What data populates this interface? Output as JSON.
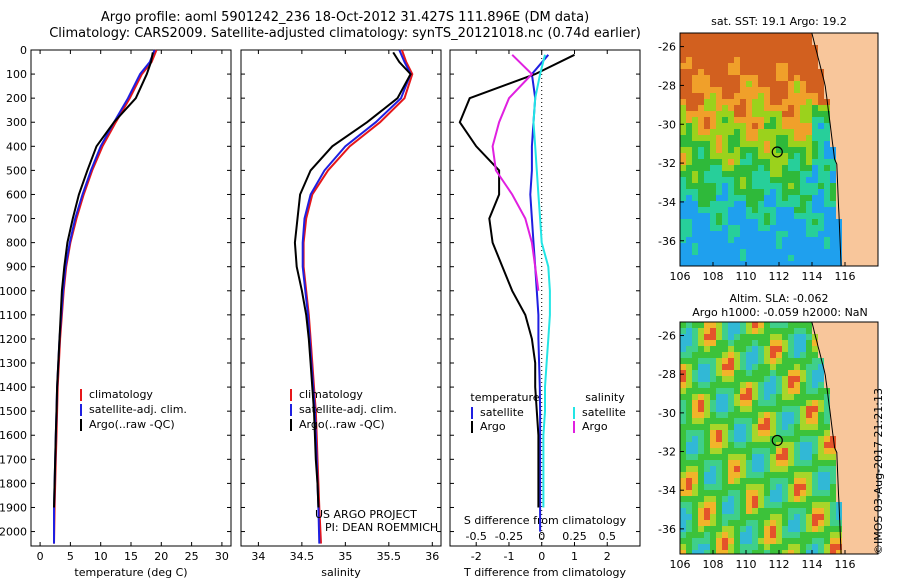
{
  "header": {
    "line1": "Argo profile: aoml 5901242_236 18-Oct-2012 31.427S 111.896E (DM data)",
    "line2": "Climatology: CARS2009. Satellite-adjusted climatology: synTS_20121018.nc (0.74d earlier)"
  },
  "colors": {
    "climatology": "#e6171a",
    "satellite": "#1f1fe0",
    "argo": "#000000",
    "satellite_salinity": "#22e5e5",
    "argo_salinity": "#e020e0",
    "land": "#f8c69b"
  },
  "chart_data": [
    {
      "type": "line",
      "panel": "temperature",
      "xlabel": "temperature (deg C)",
      "ylabel": "",
      "xlim": [
        -1.5,
        31.5
      ],
      "ylim": [
        2060,
        0
      ],
      "xticks": [
        0,
        5,
        10,
        15,
        20,
        25,
        30
      ],
      "yticks": [
        0,
        100,
        200,
        300,
        400,
        500,
        600,
        700,
        800,
        900,
        1000,
        1100,
        1200,
        1300,
        1400,
        1500,
        1600,
        1700,
        1800,
        1900,
        2000
      ],
      "legend": [
        "climatology",
        "satellite-adj. clim.",
        "Argo(..raw -QC)"
      ],
      "series": [
        {
          "name": "climatology",
          "color": "#e6171a",
          "x": [
            19.2,
            18.4,
            16.8,
            14.8,
            12.5,
            10.3,
            8.6,
            7.2,
            6.0,
            5.0,
            4.3,
            3.9,
            3.6,
            3.3,
            3.1,
            2.9,
            2.8,
            2.7,
            2.6,
            2.5,
            2.4,
            2.3
          ],
          "y": [
            0,
            50,
            100,
            200,
            300,
            400,
            500,
            600,
            700,
            800,
            900,
            1000,
            1100,
            1200,
            1300,
            1400,
            1500,
            1600,
            1700,
            1800,
            1900,
            2050
          ]
        },
        {
          "name": "satellite-adj. clim.",
          "color": "#1f1fe0",
          "x": [
            18.9,
            18.1,
            16.5,
            14.5,
            12.2,
            10.0,
            8.4,
            7.0,
            5.8,
            4.9,
            4.2,
            3.8,
            3.5,
            3.2,
            3.0,
            2.8,
            2.7,
            2.6,
            2.5,
            2.4,
            2.3,
            2.3
          ],
          "y": [
            0,
            50,
            100,
            200,
            300,
            400,
            500,
            600,
            700,
            800,
            900,
            1000,
            1100,
            1200,
            1300,
            1400,
            1500,
            1600,
            1700,
            1800,
            1900,
            2050
          ]
        },
        {
          "name": "Argo(..raw -QC)",
          "color": "#000000",
          "x": [
            18.6,
            18.3,
            17.6,
            15.8,
            12.2,
            9.3,
            7.8,
            6.4,
            5.4,
            4.5,
            4.0,
            3.6,
            3.4,
            3.2,
            3.0,
            2.8,
            2.7,
            2.6,
            2.5,
            2.4,
            2.3
          ],
          "y": [
            10,
            50,
            100,
            200,
            300,
            400,
            500,
            600,
            700,
            800,
            900,
            1000,
            1100,
            1200,
            1300,
            1400,
            1500,
            1600,
            1700,
            1800,
            1900
          ]
        }
      ]
    },
    {
      "type": "line",
      "panel": "salinity",
      "xlabel": "salinity",
      "ylabel": "",
      "xlim": [
        33.8,
        36.1
      ],
      "ylim": [
        2060,
        0
      ],
      "xticks": [
        34,
        34.5,
        35,
        35.5,
        36
      ],
      "legend": [
        "climatology",
        "satellite-adj. clim.",
        "Argo(..raw -QC)"
      ],
      "annotation": [
        "US ARGO PROJECT",
        "PI: DEAN ROEMMICH"
      ],
      "series": [
        {
          "name": "climatology",
          "color": "#e6171a",
          "x": [
            35.65,
            35.7,
            35.77,
            35.68,
            35.4,
            35.05,
            34.8,
            34.62,
            34.55,
            34.52,
            34.52,
            34.55,
            34.58,
            34.6,
            34.62,
            34.64,
            34.66,
            34.67,
            34.68,
            34.69,
            34.7,
            34.72
          ],
          "y": [
            0,
            50,
            100,
            200,
            300,
            400,
            500,
            600,
            700,
            800,
            900,
            1000,
            1100,
            1200,
            1300,
            1400,
            1500,
            1600,
            1700,
            1800,
            1900,
            2050
          ]
        },
        {
          "name": "satellite-adj. clim.",
          "color": "#1f1fe0",
          "x": [
            35.62,
            35.68,
            35.75,
            35.64,
            35.35,
            35.0,
            34.76,
            34.6,
            34.53,
            34.51,
            34.51,
            34.54,
            34.57,
            34.59,
            34.61,
            34.63,
            34.65,
            34.66,
            34.67,
            34.68,
            34.69,
            34.7
          ],
          "y": [
            0,
            50,
            100,
            200,
            300,
            400,
            500,
            600,
            700,
            800,
            900,
            1000,
            1100,
            1200,
            1300,
            1400,
            1500,
            1600,
            1700,
            1800,
            1900,
            2050
          ]
        },
        {
          "name": "Argo(..raw -QC)",
          "color": "#000000",
          "x": [
            35.55,
            35.62,
            35.75,
            35.6,
            35.25,
            34.85,
            34.6,
            34.48,
            34.45,
            34.42,
            34.44,
            34.5,
            34.55,
            34.58,
            34.6,
            34.62,
            34.64,
            34.65,
            34.66,
            34.68,
            34.69
          ],
          "y": [
            10,
            50,
            100,
            200,
            300,
            400,
            500,
            600,
            700,
            800,
            900,
            1000,
            1100,
            1200,
            1300,
            1400,
            1500,
            1600,
            1700,
            1800,
            1900
          ]
        }
      ]
    },
    {
      "type": "line",
      "panel": "differences",
      "xlabel": "T difference from climatology",
      "xlabel_top": "S difference from climatology",
      "xlim": [
        -2.8,
        3.0
      ],
      "ylim": [
        2060,
        0
      ],
      "xticks": [
        -2,
        -1,
        0,
        1,
        2
      ],
      "s_xticks": [
        "-0.5",
        "-0.25",
        "0",
        "0.25",
        "0.5"
      ],
      "legend_headers": [
        "temperature",
        "salinity"
      ],
      "legend": [
        "satellite",
        "Argo",
        "satellite",
        "Argo"
      ],
      "series": [
        {
          "name": "temperature satellite",
          "color": "#1f1fe0",
          "x": [
            0.2,
            -0.3,
            -0.2,
            -0.25,
            -0.3,
            -0.3,
            -0.35,
            -0.3,
            -0.25,
            -0.2,
            -0.15,
            -0.1,
            -0.1,
            -0.08,
            -0.06,
            -0.05,
            -0.05,
            -0.05,
            -0.05,
            -0.05,
            -0.05
          ],
          "y": [
            20,
            100,
            200,
            300,
            400,
            500,
            600,
            700,
            800,
            900,
            1000,
            1100,
            1200,
            1300,
            1400,
            1500,
            1600,
            1700,
            1800,
            1900,
            2000
          ]
        },
        {
          "name": "temperature Argo",
          "color": "#000000",
          "x": [
            1.0,
            -0.2,
            -2.2,
            -2.5,
            -2.0,
            -1.3,
            -1.3,
            -1.6,
            -1.5,
            -1.2,
            -0.9,
            -0.5,
            -0.3,
            -0.2,
            -0.2,
            -0.15,
            -0.1,
            -0.1,
            -0.1,
            -0.1
          ],
          "y": [
            20,
            100,
            200,
            300,
            400,
            500,
            600,
            700,
            800,
            900,
            1000,
            1100,
            1200,
            1300,
            1400,
            1500,
            1600,
            1700,
            1800,
            1900
          ]
        },
        {
          "name": "salinity satellite",
          "color": "#22e5e5",
          "x": [
            0.1,
            -0.05,
            -0.2,
            -0.25,
            -0.2,
            -0.15,
            -0.1,
            -0.05,
            0.0,
            0.2,
            0.25,
            0.25,
            0.2,
            0.15,
            0.1,
            0.1,
            0.05,
            0.05,
            0.05,
            0.05
          ],
          "y": [
            20,
            100,
            200,
            300,
            400,
            500,
            600,
            700,
            800,
            900,
            1000,
            1100,
            1200,
            1300,
            1400,
            1500,
            1600,
            1700,
            1800,
            1900
          ]
        },
        {
          "name": "salinity Argo",
          "color": "#e020e0",
          "x": [
            -0.9,
            -0.3,
            -1.0,
            -1.3,
            -1.5,
            -1.4,
            -0.9,
            -0.5,
            -0.3,
            -0.2,
            -0.1
          ],
          "y": [
            20,
            100,
            200,
            300,
            400,
            500,
            600,
            700,
            800,
            900,
            1000
          ]
        }
      ]
    }
  ],
  "maps": {
    "sst": {
      "title": "sat. SST: 19.1 Argo: 19.2",
      "lon_ticks": [
        "106",
        "108",
        "110",
        "112",
        "114",
        "116"
      ],
      "lat_ticks": [
        "-26",
        "-28",
        "-30",
        "-32",
        "-34",
        "-36"
      ],
      "float_lon": 111.896,
      "float_lat": -31.427
    },
    "sla": {
      "title_line1": "Altim. SLA: -0.062",
      "title_line2": "Argo h1000: -0.059 h2000: NaN",
      "lon_ticks": [
        "106",
        "108",
        "110",
        "112",
        "114",
        "116"
      ],
      "lat_ticks": [
        "-26",
        "-28",
        "-30",
        "-32",
        "-34",
        "-36"
      ],
      "float_lon": 111.896,
      "float_lat": -31.427
    }
  },
  "stamp": "©IMOS 03-Aug-2017 21:21:13"
}
